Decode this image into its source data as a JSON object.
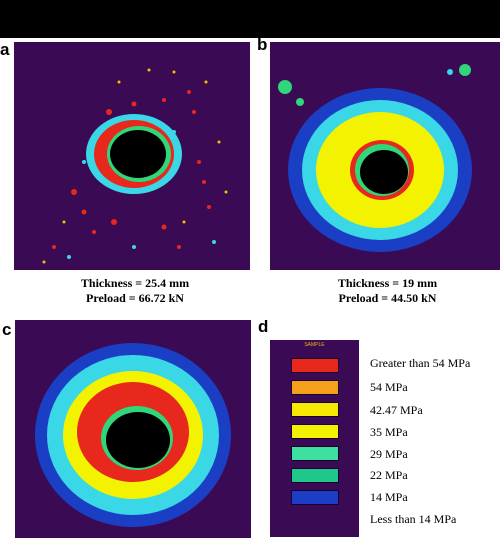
{
  "panels": {
    "a": {
      "letter": "a",
      "thickness": "Thickness = 25.4 mm",
      "preload": "Preload = 66.72 kN"
    },
    "b": {
      "letter": "b",
      "thickness": "Thickness = 19 mm",
      "preload": "Preload = 44.50 kN"
    },
    "c": {
      "letter": "c"
    },
    "d": {
      "letter": "d"
    }
  },
  "legend": {
    "header": "SAMPLE",
    "items": [
      {
        "label": "Greater than 54 MPa",
        "color": "#e8281c"
      },
      {
        "label": "54 MPa",
        "color": "#f4a01a"
      },
      {
        "label": "42.47 MPa",
        "color": "#f6e800"
      },
      {
        "label": "35 MPa",
        "color": "#f3f200"
      },
      {
        "label": "29 MPa",
        "color": "#3ee0a0"
      },
      {
        "label": "22 MPa",
        "color": "#1fc88a"
      },
      {
        "label": "14 MPa",
        "color": "#1b3fc4"
      },
      {
        "label": "Less than 14 MPa",
        "color": "#3a0a55"
      }
    ]
  },
  "colors": {
    "background": "#3a0a55",
    "red": "#e8281c",
    "yellow": "#f3f200",
    "green": "#2fd67a",
    "cyan": "#3ad8e6",
    "blue": "#1b3fc4",
    "hole": "#000000"
  }
}
